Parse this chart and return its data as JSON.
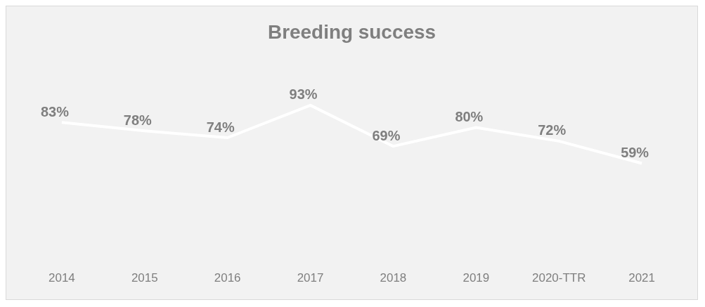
{
  "chart_data": {
    "type": "line",
    "title": "Breeding success",
    "categories": [
      "2014",
      "2015",
      "2016",
      "2017",
      "2018",
      "2019",
      "2020-TTR",
      "2021"
    ],
    "series": [
      {
        "color": "#ffffff",
        "values": [
          83,
          78,
          74,
          93,
          69,
          80,
          72,
          59
        ],
        "value_labels": [
          "83%",
          "78%",
          "74%",
          "93%",
          "69%",
          "80%",
          "72%",
          "59%"
        ]
      }
    ],
    "grid": false,
    "legend": false,
    "marker": "none",
    "line_style": "solid"
  }
}
